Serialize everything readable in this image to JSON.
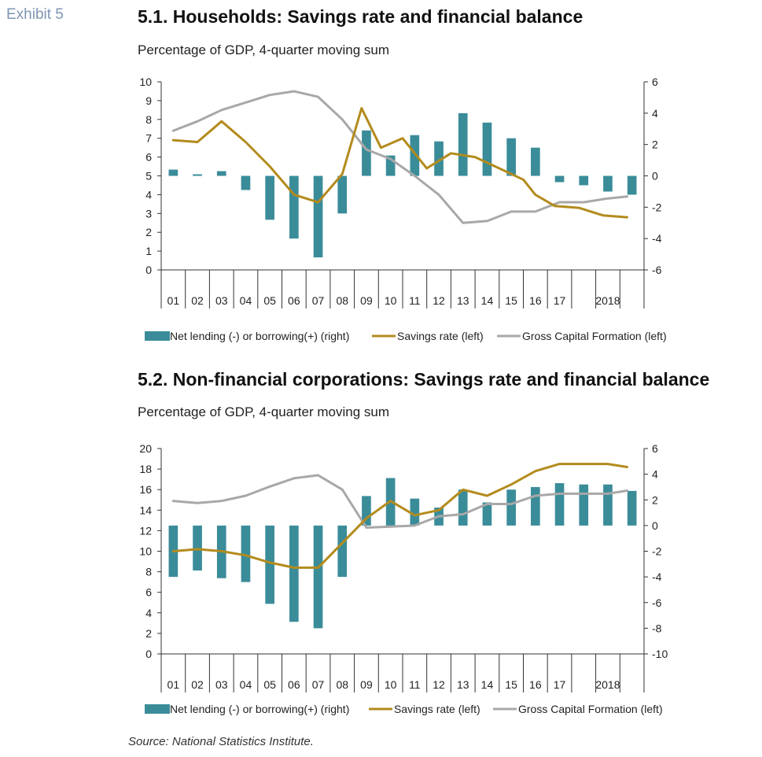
{
  "exhibit_label": "Exhibit 5",
  "source": "Source: National Statistics Institute.",
  "colors": {
    "bars": "#3a8c99",
    "savings": "#b38b1d",
    "gcf": "#a8a8a8",
    "axis": "#333333"
  },
  "chart_data": [
    {
      "type": "bar+line",
      "title": "5.1. Households: Savings rate and financial balance",
      "subtitle": "Percentage of GDP, 4-quarter moving sum",
      "x_labels": [
        "01",
        "02",
        "03",
        "04",
        "05",
        "06",
        "07",
        "08",
        "09",
        "10",
        "11",
        "12",
        "13",
        "14",
        "15",
        "16",
        "17",
        "",
        "2018",
        ""
      ],
      "left_axis": {
        "min": 0,
        "max": 10,
        "step": 1
      },
      "right_axis": {
        "min": -6,
        "max": 6,
        "step": 2
      },
      "legend": [
        "Net lending (-) or borrowing(+) (right)",
        "Savings rate (left)",
        "Gross Capital Formation (left)"
      ],
      "series": [
        {
          "name": "Net lending (-) or borrowing(+) (right)",
          "axis": "right",
          "kind": "bar",
          "values": [
            0.4,
            0.1,
            0.3,
            -0.9,
            -2.8,
            -4.0,
            -5.2,
            -2.4,
            2.9,
            1.3,
            2.6,
            2.2,
            4.0,
            3.4,
            2.4,
            1.8,
            -0.4,
            -0.6,
            -1.0,
            -1.2
          ]
        },
        {
          "name": "Savings rate (left)",
          "axis": "left",
          "kind": "line",
          "x": [
            0.5,
            1.5,
            2.5,
            3.5,
            4.5,
            5.5,
            6.5,
            7.5,
            8.3,
            9.1,
            10.0,
            11.0,
            12.0,
            13.0,
            14.0,
            15.0,
            15.5,
            16.3,
            17.3,
            18.3,
            19.3
          ],
          "values": [
            6.9,
            6.8,
            7.9,
            6.8,
            5.5,
            4.0,
            3.6,
            5.1,
            8.6,
            6.5,
            7.0,
            5.4,
            6.2,
            6.0,
            5.4,
            4.8,
            4.0,
            3.4,
            3.3,
            2.9,
            2.8
          ]
        },
        {
          "name": "Gross Capital Formation (left)",
          "axis": "left",
          "kind": "line",
          "x": [
            0.5,
            1.5,
            2.5,
            3.5,
            4.5,
            5.5,
            6.5,
            7.5,
            8.5,
            9.5,
            10.5,
            11.5,
            12.5,
            13.5,
            14.5,
            15.5,
            16.5,
            17.5,
            18.5,
            19.3
          ],
          "values": [
            7.4,
            7.9,
            8.5,
            8.9,
            9.3,
            9.5,
            9.2,
            8.0,
            6.4,
            5.9,
            5.0,
            4.0,
            2.5,
            2.6,
            3.1,
            3.1,
            3.6,
            3.6,
            3.8,
            3.9
          ]
        }
      ]
    },
    {
      "type": "bar+line",
      "title": "5.2. Non-financial corporations: Savings rate and financial balance",
      "subtitle": "Percentage of GDP, 4-quarter moving sum",
      "x_labels": [
        "01",
        "02",
        "03",
        "04",
        "05",
        "06",
        "07",
        "08",
        "09",
        "10",
        "11",
        "12",
        "13",
        "14",
        "15",
        "16",
        "17",
        "",
        "2018",
        ""
      ],
      "left_axis": {
        "min": 0,
        "max": 20,
        "step": 2
      },
      "right_axis": {
        "min": -10,
        "max": 6,
        "step": 2
      },
      "legend": [
        "Net lending (-) or borrowing(+) (right)",
        "Savings rate (left)",
        "Gross Capital Formation (left)"
      ],
      "series": [
        {
          "name": "Net lending (-) or borrowing(+) (right)",
          "axis": "right",
          "kind": "bar",
          "values": [
            -4.0,
            -3.5,
            -4.1,
            -4.4,
            -6.1,
            -7.5,
            -8.0,
            -4.0,
            2.3,
            3.7,
            2.1,
            1.4,
            2.8,
            1.8,
            2.8,
            3.0,
            3.3,
            3.2,
            3.2,
            2.7
          ]
        },
        {
          "name": "Savings rate (left)",
          "axis": "left",
          "kind": "line",
          "x": [
            0.5,
            1.5,
            2.5,
            3.5,
            4.5,
            5.5,
            6.5,
            7.5,
            8.5,
            9.5,
            10.5,
            11.5,
            12.5,
            13.5,
            14.5,
            15.5,
            16.5,
            17.5,
            18.5,
            19.3
          ],
          "values": [
            10.0,
            10.2,
            10.0,
            9.6,
            8.9,
            8.4,
            8.4,
            10.8,
            13.2,
            14.9,
            13.5,
            14.0,
            16.0,
            15.4,
            16.5,
            17.8,
            18.5,
            18.5,
            18.5,
            18.2
          ]
        },
        {
          "name": "Gross Capital Formation (left)",
          "axis": "left",
          "kind": "line",
          "x": [
            0.5,
            1.5,
            2.5,
            3.5,
            4.5,
            5.5,
            6.5,
            7.5,
            8.5,
            9.5,
            10.5,
            11.5,
            12.5,
            13.5,
            14.5,
            15.5,
            16.5,
            17.5,
            18.5,
            19.3
          ],
          "values": [
            14.9,
            14.7,
            14.9,
            15.4,
            16.3,
            17.1,
            17.4,
            16.0,
            12.3,
            12.4,
            12.5,
            13.4,
            13.6,
            14.6,
            14.6,
            15.4,
            15.6,
            15.6,
            15.6,
            15.9
          ]
        }
      ]
    }
  ]
}
